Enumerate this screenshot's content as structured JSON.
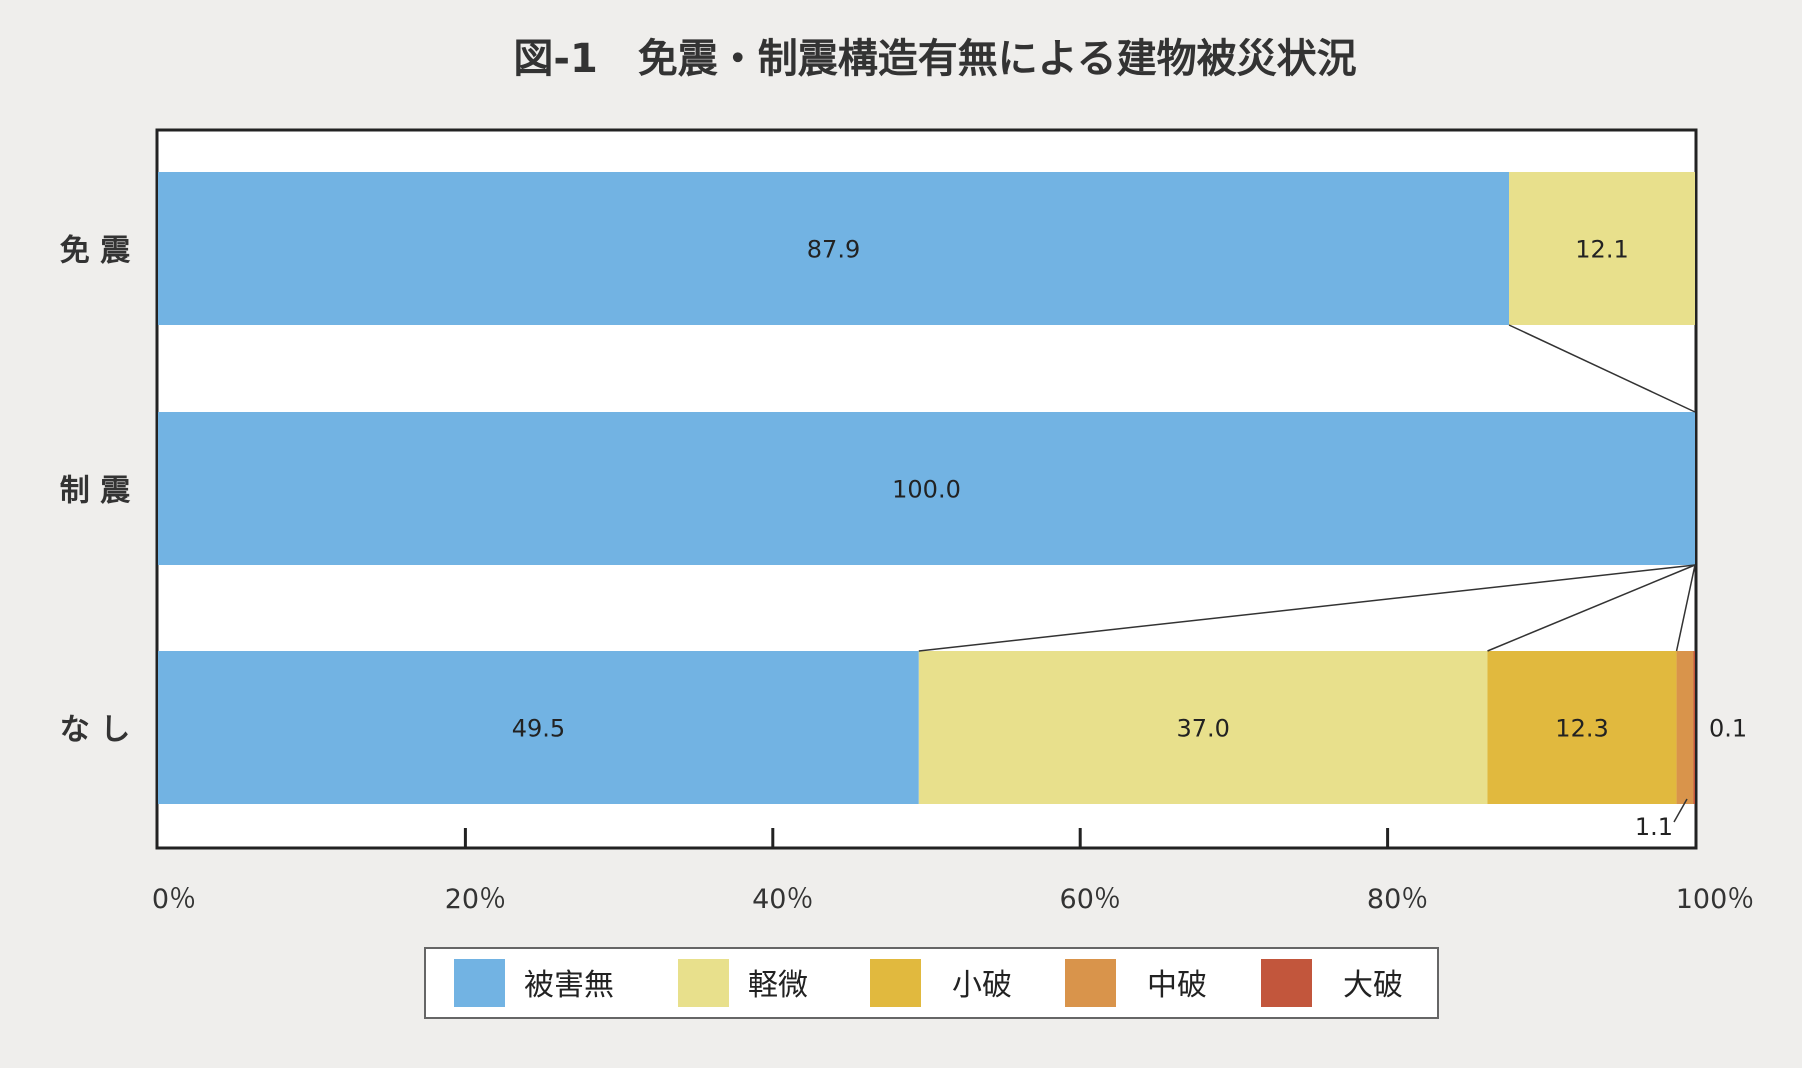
{
  "chart_data": {
    "type": "bar",
    "orientation": "horizontal-stacked-100",
    "title": "図-1　免震・制震構造有無による建物被災状況",
    "categories": [
      "免 震",
      "制 震",
      "な し"
    ],
    "series": [
      {
        "name": "被害無",
        "color": "#72b3e3",
        "values": [
          87.9,
          100.0,
          49.5
        ]
      },
      {
        "name": "軽微",
        "color": "#e8e08c",
        "values": [
          12.1,
          0,
          37.0
        ]
      },
      {
        "name": "小破",
        "color": "#e1b93e",
        "values": [
          0,
          0,
          12.3
        ]
      },
      {
        "name": "中破",
        "color": "#d9944b",
        "values": [
          0,
          0,
          1.1
        ]
      },
      {
        "name": "大破",
        "color": "#c2563c",
        "values": [
          0,
          0,
          0.1
        ]
      }
    ],
    "data_labels": [
      [
        "87.9",
        "12.1",
        "",
        "",
        ""
      ],
      [
        "100.0",
        "",
        "",
        "",
        ""
      ],
      [
        "49.5",
        "37.0",
        "12.3",
        "1.1",
        "0.1"
      ]
    ],
    "xlim": [
      0,
      100
    ],
    "xticks": [
      "0％",
      "20％",
      "40％",
      "60％",
      "80％",
      "100％"
    ],
    "legend_position": "bottom",
    "grid": false
  }
}
